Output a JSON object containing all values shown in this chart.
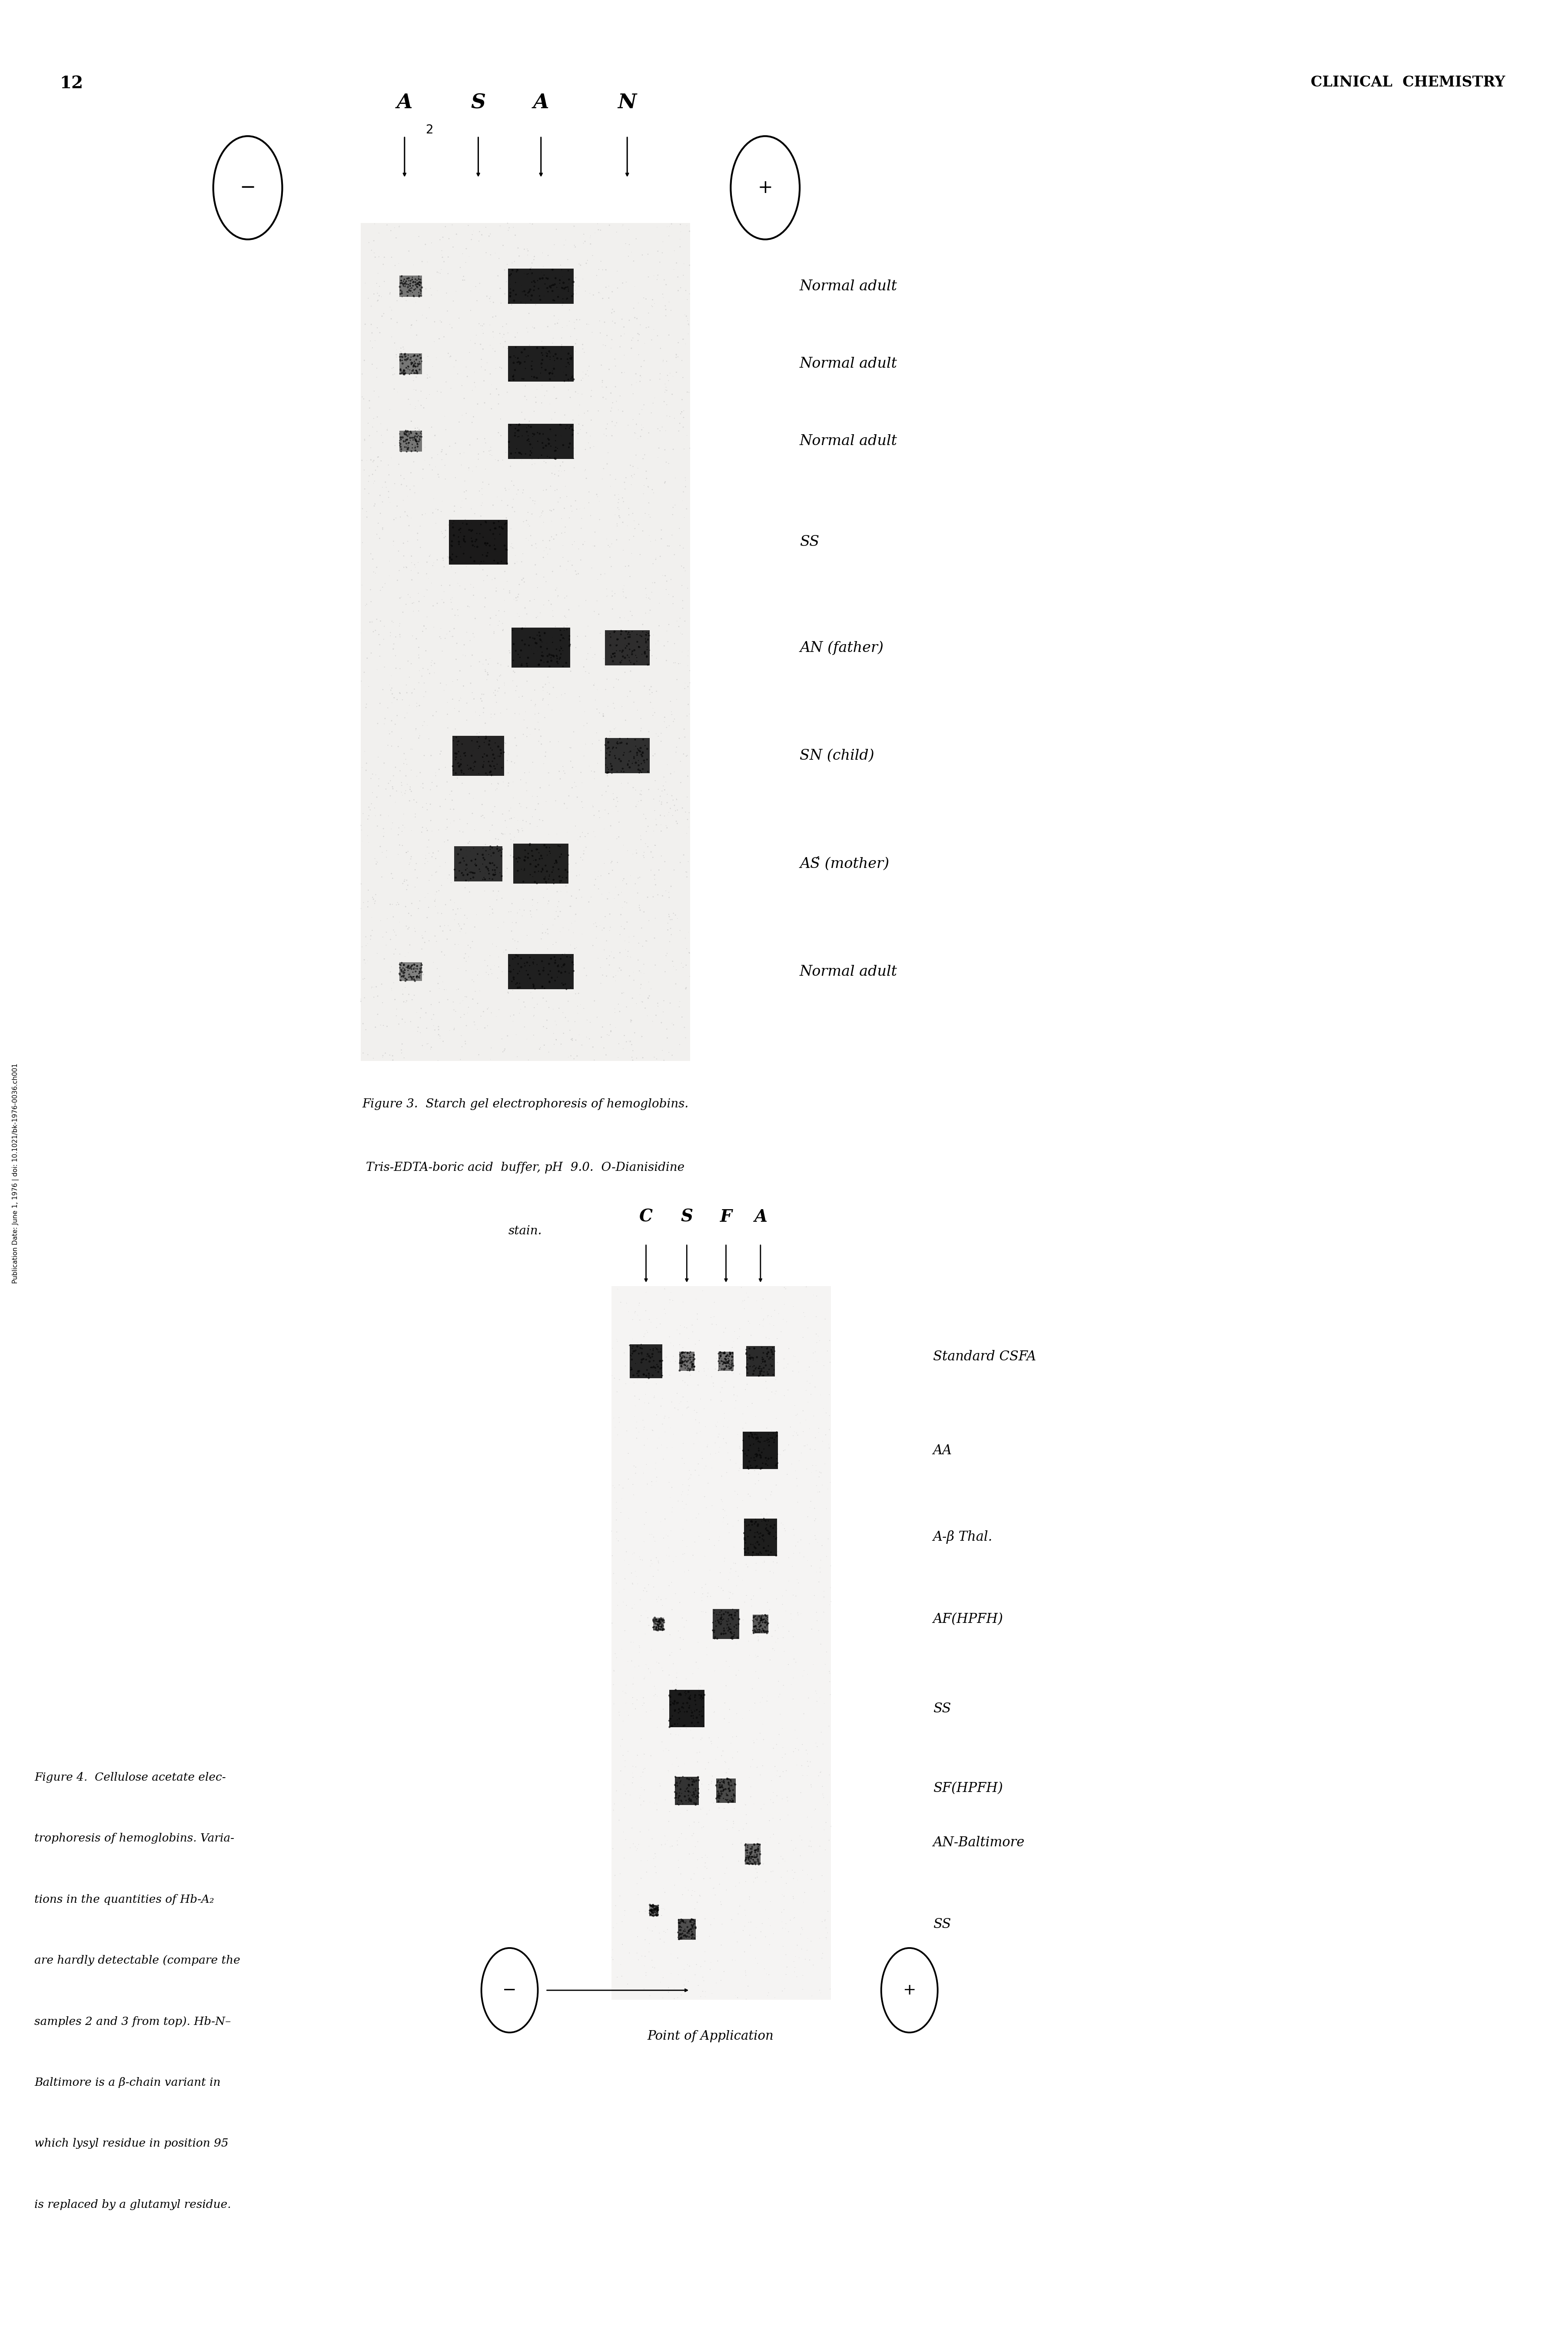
{
  "page_number": "12",
  "journal_title": "CLINICAL  CHEMISTRY",
  "sidebar_text": "Publication Date: June 1, 1976 | doi: 10.1021/bk-1976-0036.ch001",
  "fig3": {
    "title_line1": "Figure 3.  Starch gel electrophoresis of hemoglobins.",
    "title_line2": "Tris-EDTA-boric acid  buffer, pH  9.0.  O-Dianisidine",
    "title_line3": "stain.",
    "sample_labels": [
      "Normal adult",
      "Normal adult",
      "Normal adult",
      "SS",
      "AN (father)",
      "SN (child)",
      "AŚ (mother)",
      "Normal adult"
    ]
  },
  "fig4": {
    "caption_lines": [
      "Figure 4.  Cellulose acetate elec-",
      "trophoresis of hemoglobins. Varia-",
      "tions in the quantities of Hb-A₂",
      "are hardly detectable (compare the",
      "samples 2 and 3 from top). Hb-N–",
      "Baltimore is a β-chain variant in",
      "which lysyl residue in position 95",
      "is replaced by a glutamyl residue."
    ],
    "sample_labels": [
      "Standard CSFA",
      "AA",
      "A-β Thal.",
      "AF(HPFH)",
      "SS",
      "SF(HPFH)",
      "AN-Baltimore",
      "SS"
    ],
    "point_of_application_text": "Point of Application"
  },
  "bg_color": "#ffffff"
}
